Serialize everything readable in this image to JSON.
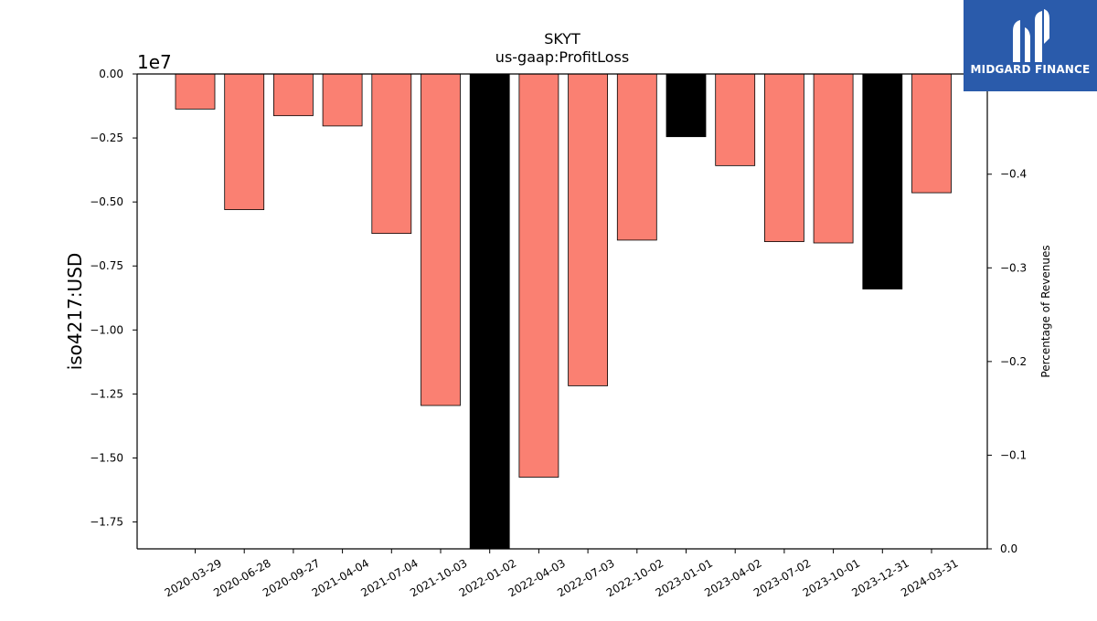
{
  "chart_data": {
    "type": "bar",
    "title": "SKYT",
    "subtitle": "us-gaap:ProfitLoss",
    "ylabel": "iso4217:USD",
    "y_offset_label": "1e7",
    "y2label": "Percentage of Revenues",
    "categories": [
      "2020-03-29",
      "2020-06-28",
      "2020-09-27",
      "2021-04-04",
      "2021-07-04",
      "2021-10-03",
      "2022-01-02",
      "2022-04-03",
      "2022-07-03",
      "2022-10-02",
      "2023-01-01",
      "2023-04-02",
      "2023-07-02",
      "2023-10-01",
      "2023-12-31",
      "2024-03-31"
    ],
    "values": [
      -1370000,
      -5300000,
      -1630000,
      -2030000,
      -6230000,
      -12950000,
      -18600000,
      -15750000,
      -12180000,
      -6490000,
      -2450000,
      -3580000,
      -6550000,
      -6600000,
      -8400000,
      -4640000
    ],
    "bar_colors": [
      "#fa8072",
      "#fa8072",
      "#fa8072",
      "#fa8072",
      "#fa8072",
      "#fa8072",
      "#000000",
      "#fa8072",
      "#fa8072",
      "#fa8072",
      "#000000",
      "#fa8072",
      "#fa8072",
      "#fa8072",
      "#000000",
      "#fa8072"
    ],
    "ylim": [
      -18550000,
      0
    ],
    "yticks": [
      0,
      -2500000,
      -5000000,
      -7500000,
      -10000000,
      -12500000,
      -15000000,
      -17500000
    ],
    "ytick_labels": [
      "0.00",
      "−0.25",
      "−0.50",
      "−0.75",
      "−1.00",
      "−1.25",
      "−1.50",
      "−1.75"
    ],
    "y2lim": [
      0,
      -0.507
    ],
    "y2ticks": [
      0,
      -0.1,
      -0.2,
      -0.3,
      -0.4
    ],
    "y2tick_labels": [
      "0.0",
      "−0.1",
      "−0.2",
      "−0.3",
      "−0.4"
    ]
  },
  "logo": {
    "text": "MIDGARD FINANCE"
  }
}
